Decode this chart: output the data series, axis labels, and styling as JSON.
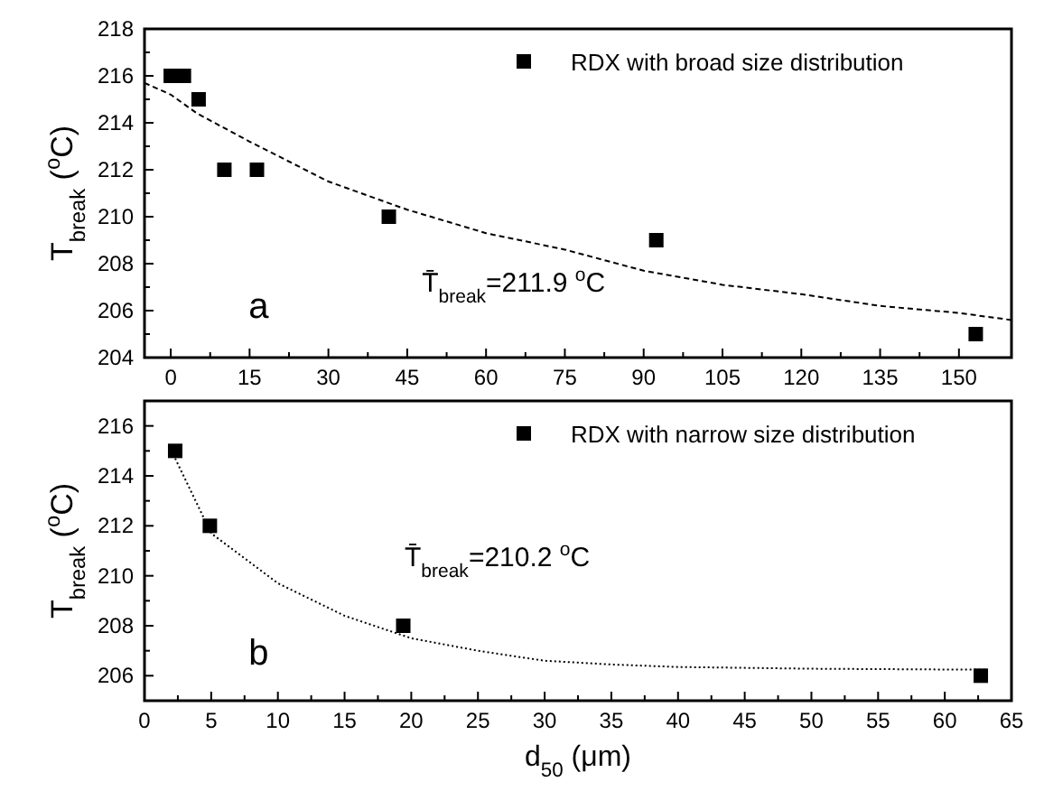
{
  "chart_data": [
    {
      "type": "scatter",
      "xlim": [
        -5,
        160
      ],
      "xticks": [
        0,
        15,
        30,
        45,
        60,
        75,
        90,
        105,
        120,
        135,
        150
      ],
      "ylim": [
        204,
        218
      ],
      "yticks": [
        204,
        206,
        208,
        210,
        212,
        214,
        216,
        218
      ],
      "ylabel": "T$_{break}$ ($^{o}$C)",
      "legend": "top right",
      "marker": "square",
      "annotations": [
        "a",
        "T̄$_{break}$=211.9 $^{o}$C"
      ],
      "series": [
        {
          "name": "RDX with broad size distribution",
          "color": "#000000",
          "x": [
            0,
            2.5,
            5.3,
            10.2,
            16.4,
            41.5,
            92.4,
            153.2
          ],
          "values": [
            216,
            216,
            215,
            212,
            212,
            210,
            209,
            205
          ]
        },
        {
          "type": "line",
          "line_style": "dashed",
          "marker": "none",
          "color": "#000000",
          "x": [
            -5,
            0,
            5,
            15,
            30,
            45,
            60,
            75,
            90,
            105,
            120,
            135,
            150,
            160
          ],
          "values": [
            215.7,
            215.2,
            214.4,
            213.2,
            211.5,
            210.3,
            209.3,
            208.6,
            207.7,
            207.1,
            206.7,
            206.2,
            205.9,
            205.6
          ]
        }
      ]
    },
    {
      "type": "scatter",
      "xlim": [
        0,
        65
      ],
      "xticks": [
        0,
        5,
        10,
        15,
        20,
        25,
        30,
        35,
        40,
        45,
        50,
        55,
        60,
        65
      ],
      "ylim": [
        205,
        217
      ],
      "yticks": [
        206,
        208,
        210,
        212,
        214,
        216
      ],
      "xlabel": "d$_{50}$ (μm)",
      "ylabel": "T$_{break}$ ($^{o}$C)",
      "legend": "top right",
      "marker": "square",
      "annotations": [
        "b",
        "T̄$_{break}$=210.2 $^{o}$C"
      ],
      "series": [
        {
          "name": "RDX with narrow size distribution",
          "color": "#000000",
          "x": [
            2.3,
            4.9,
            19.4,
            62.7
          ],
          "values": [
            215,
            212,
            208,
            206
          ]
        },
        {
          "type": "line",
          "line_style": "dotted",
          "marker": "none",
          "color": "#000000",
          "x": [
            2.3,
            5,
            10,
            15,
            20,
            25,
            30,
            35,
            40,
            50,
            63
          ],
          "values": [
            214.7,
            211.7,
            209.7,
            208.4,
            207.5,
            207.0,
            206.6,
            206.45,
            206.35,
            206.28,
            206.24
          ]
        }
      ]
    }
  ]
}
